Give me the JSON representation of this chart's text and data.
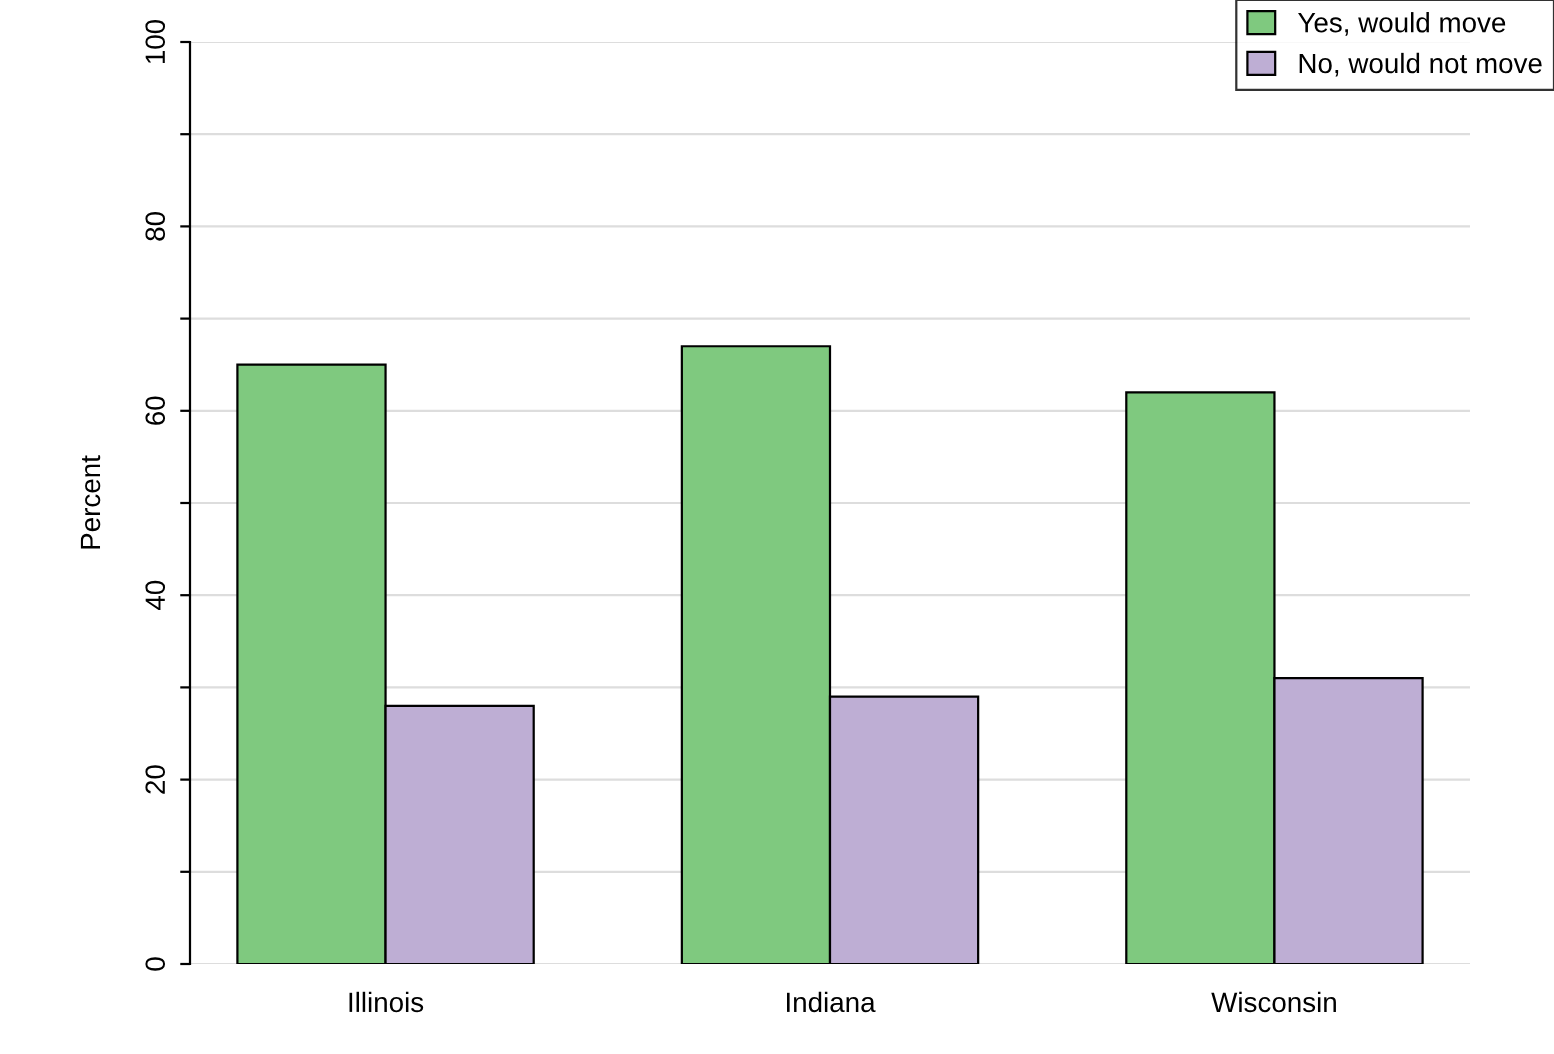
{
  "chart_data": {
    "type": "bar",
    "ylabel": "Percent",
    "categories": [
      "Illinois",
      "Indiana",
      "Wisconsin"
    ],
    "series": [
      {
        "name": "Yes, would move",
        "color": "#7fc97f",
        "values": [
          65,
          67,
          62
        ]
      },
      {
        "name": "No, would not move",
        "color": "#beaed4",
        "values": [
          28,
          29,
          31
        ]
      }
    ],
    "ylim": [
      0,
      100
    ],
    "yticks": [
      0,
      {
        "value": 10,
        "label": null
      },
      20,
      {
        "value": 30,
        "label": null
      },
      40,
      {
        "value": 50,
        "label": null
      },
      60,
      {
        "value": 70,
        "label": null
      },
      80,
      {
        "value": 90,
        "label": null
      },
      100
    ],
    "grid": "y",
    "legend": "top right"
  }
}
